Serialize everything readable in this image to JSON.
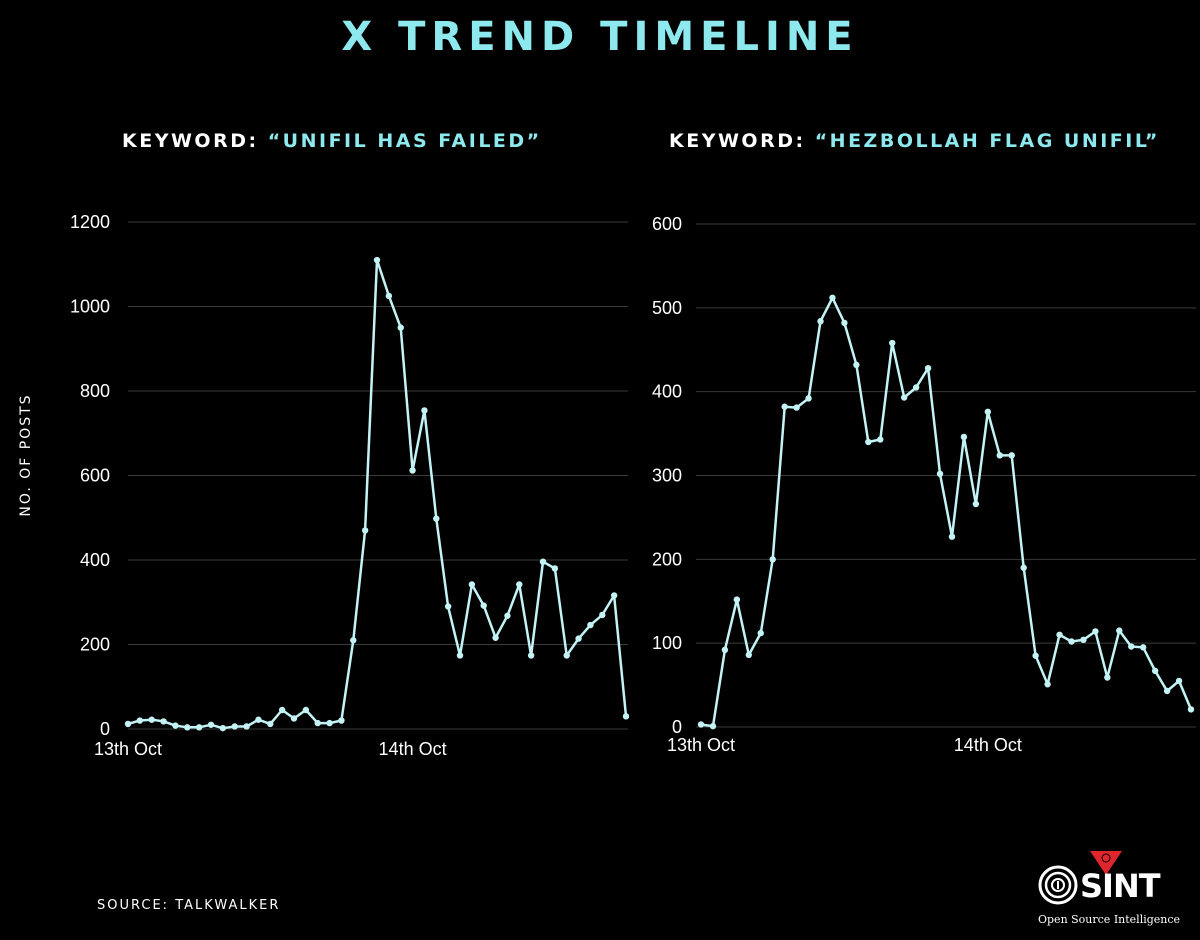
{
  "title": "X TREND TIMELINE",
  "source": "SOURCE: TALKWALKER",
  "logo": {
    "text": "SINT",
    "tagline": "Open Source Intelligence"
  },
  "colors": {
    "accent": "#8ee9ee",
    "line": "#c3f3f5",
    "background": "#000000",
    "grid": "#3a3a3a",
    "text": "#ffffff",
    "logo_badge": "#e0262d"
  },
  "chart_data": [
    {
      "type": "line",
      "title_prefix": "KEYWORD: ",
      "title_keyword": "“UNIFIL HAS FAILED”",
      "ylabel": "NO. OF POSTS",
      "ylim": [
        0,
        1200
      ],
      "yticks": [
        0,
        200,
        400,
        600,
        800,
        1000,
        1200
      ],
      "x_tick_labels": [
        {
          "label": "13th Oct",
          "index": 0
        },
        {
          "label": "14th Oct",
          "index": 24
        }
      ],
      "grid": true,
      "series": [
        {
          "values": [
            12,
            20,
            22,
            18,
            8,
            4,
            4,
            10,
            2,
            6,
            6,
            22,
            12,
            45,
            25,
            45,
            14,
            14,
            20,
            210,
            470,
            1110,
            1025,
            950,
            612,
            754,
            498,
            290,
            174,
            342,
            292,
            216,
            268,
            342,
            174,
            396,
            380,
            174,
            214,
            246,
            270,
            316,
            30
          ]
        }
      ]
    },
    {
      "type": "line",
      "title_prefix": "KEYWORD: ",
      "title_keyword": "“HEZBOLLAH FLAG UNIFIL”",
      "ylabel": "",
      "ylim": [
        0,
        600
      ],
      "yticks": [
        0,
        100,
        200,
        300,
        400,
        500,
        600
      ],
      "x_tick_labels": [
        {
          "label": "13th Oct",
          "index": 0
        },
        {
          "label": "14th Oct",
          "index": 24
        }
      ],
      "grid": true,
      "series": [
        {
          "values": [
            3,
            1,
            92,
            152,
            86,
            112,
            200,
            382,
            381,
            392,
            484,
            512,
            482,
            432,
            340,
            343,
            458,
            393,
            405,
            428,
            302,
            227,
            346,
            266,
            376,
            324,
            324,
            190,
            85,
            51,
            110,
            102,
            104,
            114,
            59,
            115,
            96,
            95,
            67,
            43,
            55,
            21
          ]
        }
      ]
    }
  ]
}
